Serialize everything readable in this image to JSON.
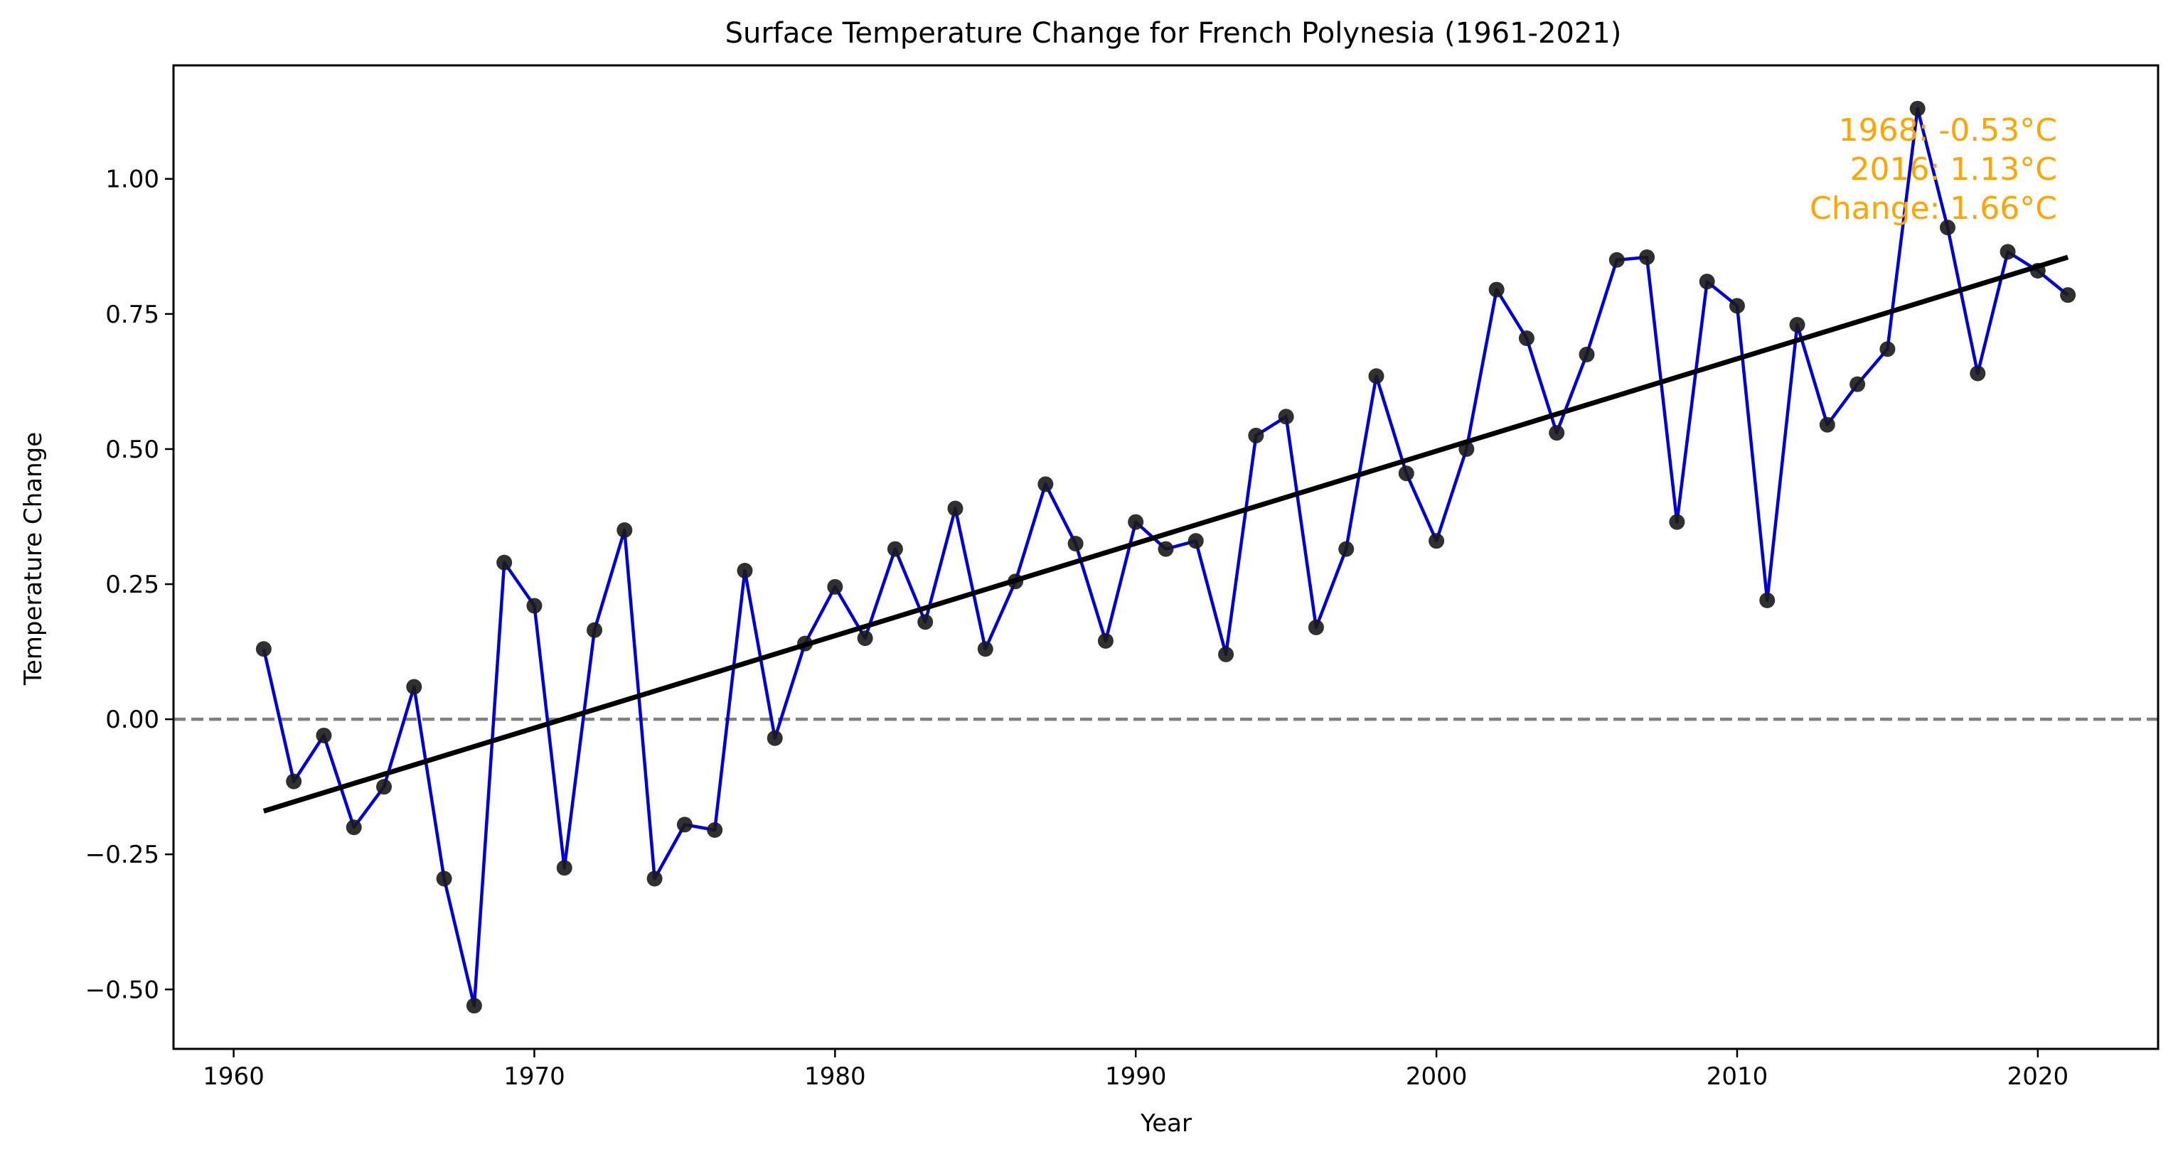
{
  "chart_data": {
    "type": "line",
    "title": "Surface Temperature Change for French Polynesia (1961-2021)",
    "xlabel": "Year",
    "ylabel": "Temperature Change",
    "xlim": [
      1958.0,
      2024.0
    ],
    "ylim": [
      -0.61,
      1.21
    ],
    "x_ticks": [
      1960,
      1970,
      1980,
      1990,
      2000,
      2010,
      2020
    ],
    "x_tick_labels": [
      "1960",
      "1970",
      "1980",
      "1990",
      "2000",
      "2010",
      "2020"
    ],
    "y_ticks": [
      -0.5,
      -0.25,
      0.0,
      0.25,
      0.5,
      0.75,
      1.0
    ],
    "y_tick_labels": [
      "−0.50",
      "−0.25",
      "0.00",
      "0.25",
      "0.50",
      "0.75",
      "1.00"
    ],
    "grid": false,
    "series": [
      {
        "type": "line",
        "color": "#0000dd",
        "marker_color": "#1a1a1a",
        "x": [
          1961,
          1962,
          1963,
          1964,
          1965,
          1966,
          1967,
          1968,
          1969,
          1970,
          1971,
          1972,
          1973,
          1974,
          1975,
          1976,
          1977,
          1978,
          1979,
          1980,
          1981,
          1982,
          1983,
          1984,
          1985,
          1986,
          1987,
          1988,
          1989,
          1990,
          1991,
          1992,
          1993,
          1994,
          1995,
          1996,
          1997,
          1998,
          1999,
          2000,
          2001,
          2002,
          2003,
          2004,
          2005,
          2006,
          2007,
          2008,
          2009,
          2010,
          2011,
          2012,
          2013,
          2014,
          2015,
          2016,
          2017,
          2018,
          2019,
          2020,
          2021
        ],
        "y": [
          0.13,
          -0.115,
          -0.03,
          -0.2,
          -0.125,
          0.06,
          -0.295,
          -0.53,
          0.29,
          0.21,
          -0.275,
          0.165,
          0.35,
          -0.295,
          -0.195,
          -0.205,
          0.275,
          -0.035,
          0.14,
          0.245,
          0.15,
          0.315,
          0.18,
          0.39,
          0.13,
          0.255,
          0.435,
          0.325,
          0.145,
          0.365,
          0.315,
          0.33,
          0.12,
          0.525,
          0.56,
          0.17,
          0.315,
          0.635,
          0.455,
          0.33,
          0.5,
          0.795,
          0.705,
          0.53,
          0.675,
          0.85,
          0.855,
          0.365,
          0.81,
          0.765,
          0.22,
          0.73,
          0.545,
          0.62,
          0.685,
          1.13,
          0.91,
          0.64,
          0.865,
          0.83,
          0.785
        ]
      },
      {
        "type": "trend",
        "color": "#000000",
        "x": [
          1961,
          2021
        ],
        "y": [
          -0.17,
          0.855
        ]
      },
      {
        "type": "reference",
        "color": "#808080",
        "y": 0.0,
        "style": "dashed"
      }
    ],
    "annotation": {
      "color": "#ffa500",
      "lines": [
        "1968: -0.53°C",
        "2016: 1.13°C",
        "Change: 1.66°C"
      ]
    }
  }
}
